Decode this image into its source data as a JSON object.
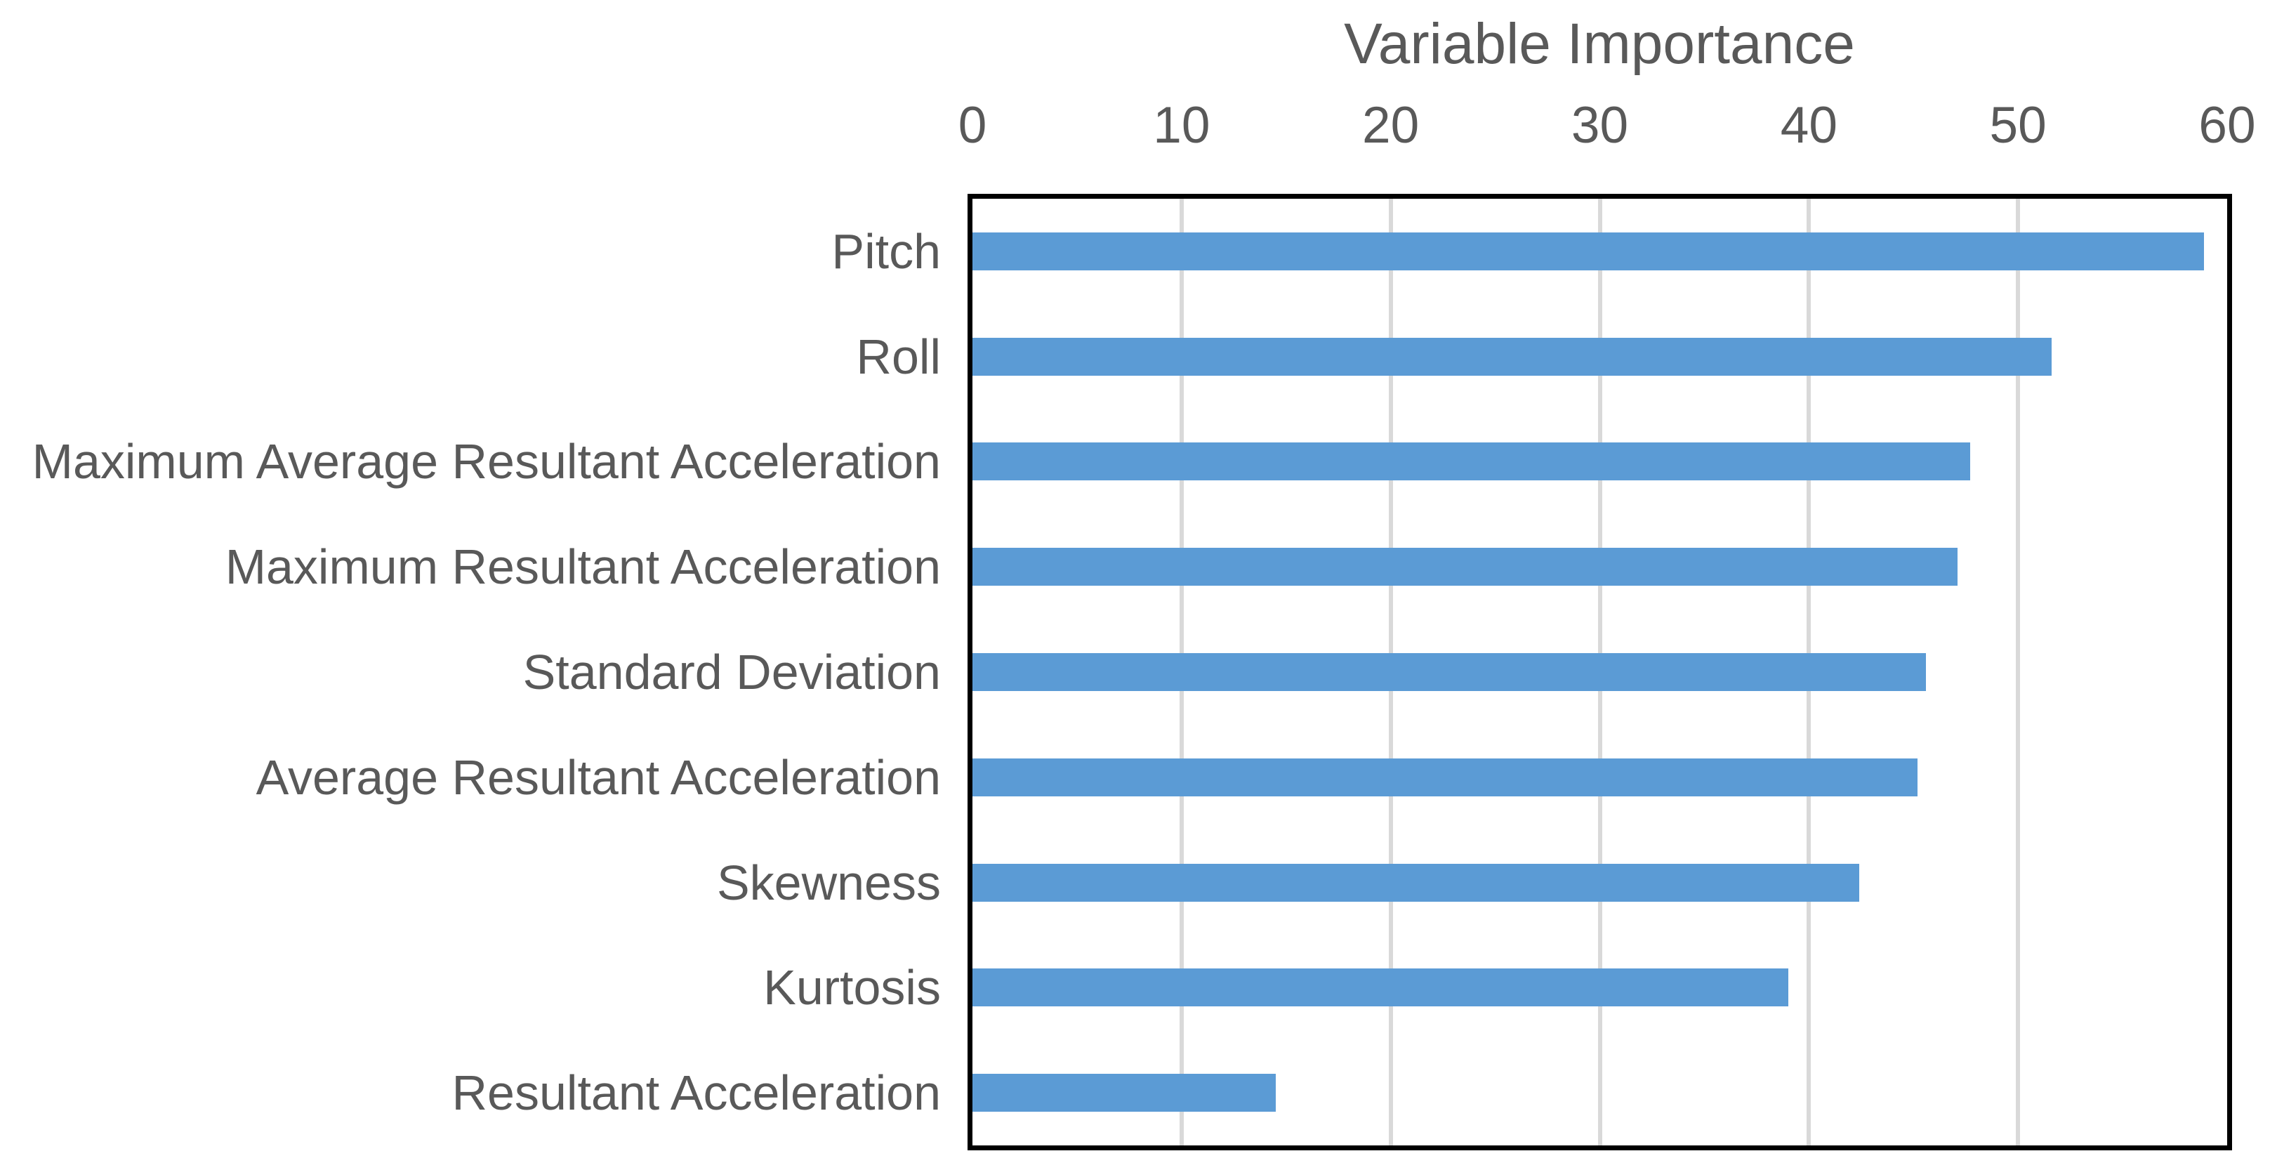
{
  "chart_data": {
    "type": "bar",
    "orientation": "horizontal",
    "title": "Variable Importance",
    "categories": [
      "Pitch",
      "Roll",
      "Maximum Average Resultant Acceleration",
      "Maximum Resultant Acceleration",
      "Standard Deviation",
      "Average Resultant Acceleration",
      "Skewness",
      "Kurtosis",
      "Resultant Acceleration"
    ],
    "values": [
      58.9,
      51.6,
      47.7,
      47.1,
      45.6,
      45.2,
      42.4,
      39.0,
      14.5
    ],
    "xlabel": "",
    "ylabel": "",
    "xlim": [
      0,
      60
    ],
    "xticks": [
      0,
      10,
      20,
      30,
      40,
      50,
      60
    ],
    "gridlines": [
      10,
      20,
      30,
      40,
      50
    ],
    "axis_position": "top",
    "grid": "vertical-on",
    "legend": "none"
  },
  "colors": {
    "bar": "#5B9BD5",
    "gridline": "#D9D9D9",
    "plot_border": "#000000",
    "text": "#595959",
    "background": "#FFFFFF"
  }
}
